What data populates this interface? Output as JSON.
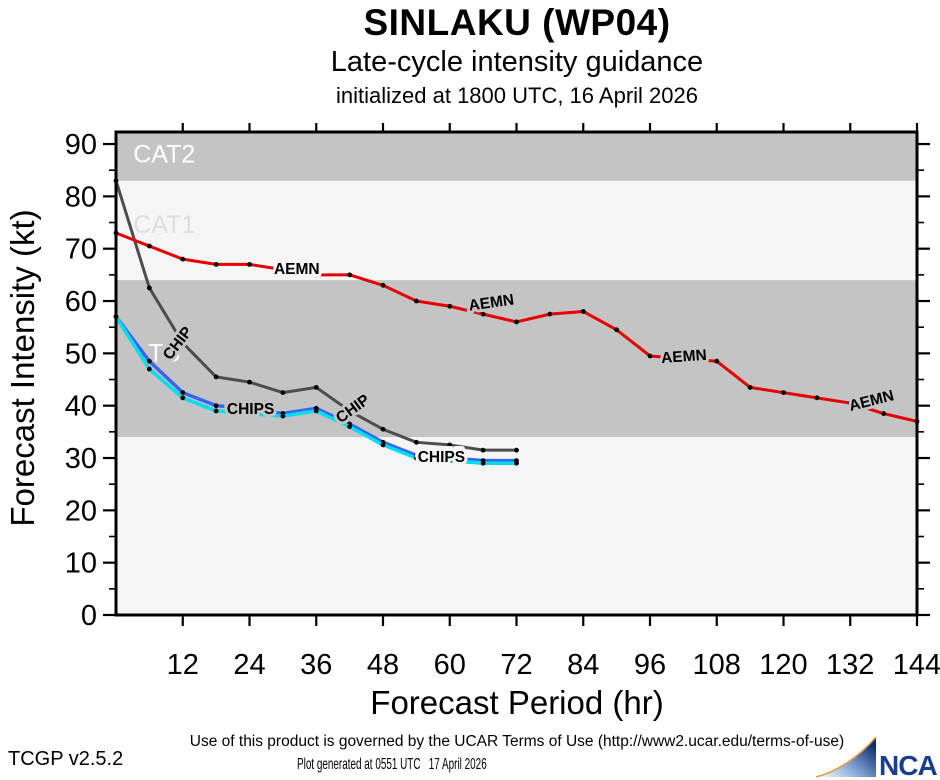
{
  "header": {
    "title": "SINLAKU (WP04)",
    "subtitle": "Late-cycle intensity guidance",
    "init_line": "initialized at 1800 UTC, 16 April 2026"
  },
  "footer": {
    "terms": "Use of this product is governed by the UCAR Terms of Use (http://www2.ucar.edu/terms-of-use)",
    "generated": "Plot generated at 0551 UTC   17 April 2026",
    "version": "TCGP v2.5.2",
    "logo_text": "NCAR"
  },
  "chart_data": {
    "type": "line",
    "title": "SINLAKU (WP04)",
    "subtitle": "Late-cycle intensity guidance",
    "init_time": "initialized at 1800 UTC, 16 April 2026",
    "xlabel": "Forecast Period (hr)",
    "ylabel": "Forecast Intensity (kt)",
    "xlim": [
      0,
      144
    ],
    "ylim": [
      0,
      92.3
    ],
    "xticks": [
      12,
      24,
      36,
      48,
      60,
      72,
      84,
      96,
      108,
      120,
      132,
      144
    ],
    "yticks": [
      0,
      10,
      20,
      30,
      40,
      50,
      60,
      70,
      80,
      90
    ],
    "yticks_minor": [
      5,
      15,
      25,
      35,
      45,
      55,
      65,
      75,
      85
    ],
    "grid": false,
    "legend_position": "inline-labels",
    "marker_color": "#000000",
    "bands": [
      {
        "name": "below-ts",
        "from": 0,
        "to": 34,
        "color": "#f5f5f5",
        "label": "",
        "label_color": "",
        "label_hour": 0,
        "label_kt": 0
      },
      {
        "name": "ts",
        "from": 34,
        "to": 64,
        "color": "#c4c4c4",
        "label": "TS",
        "label_color": "#ffffff",
        "label_hour": 5.8,
        "label_kt": 50.2
      },
      {
        "name": "cat1",
        "from": 64,
        "to": 83,
        "color": "#f5f5f5",
        "label": "CAT1",
        "label_color": "#dedede",
        "label_hour": 3.1,
        "label_kt": 74.7
      },
      {
        "name": "cat2",
        "from": 83,
        "to": 92.3,
        "color": "#c4c4c4",
        "label": "CAT2",
        "label_color": "#ffffff",
        "label_hour": 3.1,
        "label_kt": 88.2
      }
    ],
    "series": [
      {
        "name": "CHIP",
        "color": "#4d4d4d",
        "width": 3,
        "hours": [
          0,
          6,
          12,
          18,
          24,
          30,
          36,
          42,
          48,
          54,
          60,
          66,
          72
        ],
        "values": [
          83,
          62.5,
          52,
          45.5,
          44.5,
          42.5,
          43.5,
          39,
          35.5,
          33,
          32.5,
          31.5,
          31.5
        ],
        "labels": [
          {
            "text": "CHIP",
            "hour": 11,
            "kt": 52,
            "rot": -52,
            "anchor": "middle"
          },
          {
            "text": "CHIP",
            "hour": 42.5,
            "kt": 39.5,
            "rot": -36,
            "anchor": "middle"
          }
        ]
      },
      {
        "name": "AEMN",
        "color": "#e60000",
        "width": 3,
        "hours": [
          0,
          6,
          12,
          18,
          24,
          30,
          36,
          42,
          48,
          54,
          60,
          66,
          72,
          78,
          84,
          90,
          96,
          102,
          108,
          114,
          120,
          126,
          132,
          138,
          144
        ],
        "values": [
          73,
          70.5,
          68,
          67,
          67,
          66,
          65,
          65,
          63,
          60,
          59,
          57.5,
          56,
          57.5,
          58,
          54.5,
          49.5,
          49,
          48.5,
          43.5,
          42.5,
          41.5,
          40.5,
          38.5,
          37
        ],
        "labels": [
          {
            "text": "AEMN",
            "hour": 28.4,
            "kt": 66.2,
            "rot": 0,
            "anchor": "start"
          },
          {
            "text": "AEMN",
            "hour": 63.4,
            "kt": 59.2,
            "rot": -8,
            "anchor": "start"
          },
          {
            "text": "AEMN",
            "hour": 98.0,
            "kt": 49.2,
            "rot": -4,
            "anchor": "start"
          },
          {
            "text": "AEMN",
            "hour": 131.8,
            "kt": 40.0,
            "rot": -14,
            "anchor": "start"
          }
        ]
      },
      {
        "name": "CHIP5",
        "color": "#3a64ee",
        "width": 3.5,
        "hours": [
          0,
          6,
          12,
          18,
          24,
          30,
          36,
          42,
          48,
          54,
          60,
          66,
          72
        ],
        "values": [
          57,
          48.5,
          42.5,
          40,
          39.5,
          38.5,
          39.5,
          36.5,
          33,
          30.5,
          30,
          29.5,
          29.5
        ],
        "labels": [
          {
            "text": "CHIP5",
            "hour": 24.0,
            "kt": 39.9,
            "rot": 0,
            "anchor": "middle"
          },
          {
            "text": "CHIP5",
            "hour": 58.3,
            "kt": 30.7,
            "rot": 0,
            "anchor": "middle"
          }
        ]
      },
      {
        "name": "CHIPS",
        "color": "#00dcf0",
        "width": 3.5,
        "hours": [
          0,
          6,
          12,
          18,
          24,
          30,
          36,
          42,
          48,
          54,
          60,
          66,
          72
        ],
        "values": [
          57,
          47,
          41.5,
          39,
          38.5,
          38,
          39,
          36,
          32.5,
          30,
          29.5,
          29,
          29
        ],
        "labels": [
          {
            "text": "CHIPS",
            "hour": 24.2,
            "kt": 39.5,
            "rot": 0,
            "anchor": "middle"
          },
          {
            "text": "CHIPS",
            "hour": 58.5,
            "kt": 30.3,
            "rot": 0,
            "anchor": "middle"
          }
        ]
      }
    ]
  }
}
